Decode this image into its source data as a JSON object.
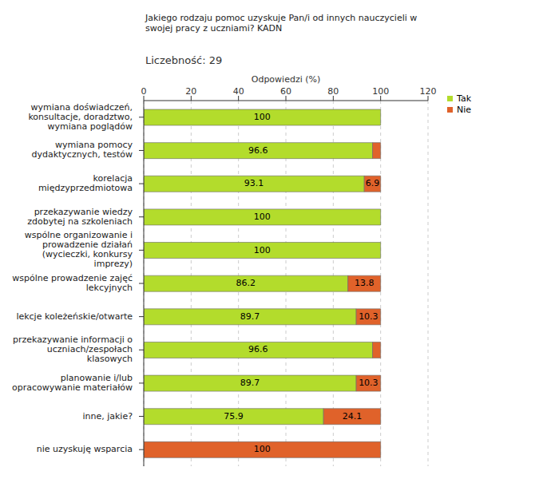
{
  "chart_data": {
    "type": "bar",
    "orientation": "horizontal",
    "stacked": true,
    "title": "Jakiego rodzaju pomoc uzyskuje Pan/i od innych nauczycieli w swojej pracy z uczniami? KADN",
    "subtitle": "Liczebność: 29",
    "x_label": "Odpowiedzi (%)",
    "categories": [
      "wymiana doświadczeń, konsultacje, doradztwo, wymiana poglądów",
      "wymiana pomocy dydaktycznych, testów",
      "korelacja międzyprzedmiotowa",
      "przekazywanie wiedzy zdobytej na szkoleniach",
      "wspólne organizowanie i prowadzenie działań (wycieczki, konkursy imprezy)",
      "wspólne prowadzenie zajęć lekcyjnych",
      "lekcje koleżeńskie/otwarte",
      "przekazywanie informacji o uczniach/zespołach klasowych",
      "planowanie i/lub opracowywanie materiałów",
      "inne, jakie?",
      "nie uzyskuję wsparcia"
    ],
    "series": [
      {
        "name": "Tak",
        "color": "#b3dc2c",
        "values": [
          100,
          96.6,
          93.1,
          100,
          100,
          86.2,
          89.7,
          96.6,
          89.7,
          75.9,
          0
        ]
      },
      {
        "name": "Nie",
        "color": "#e0622a",
        "values": [
          0,
          3.4,
          6.9,
          0,
          0,
          13.8,
          10.3,
          3.4,
          10.3,
          24.1,
          100
        ]
      }
    ],
    "xlim": [
      0,
      120
    ],
    "xticks": [
      0,
      20,
      40,
      60,
      80,
      100,
      120
    ],
    "grid": true,
    "legend": "upper right",
    "data_labels": true
  }
}
